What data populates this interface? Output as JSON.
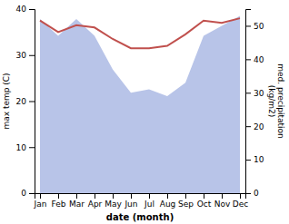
{
  "chart_data": {
    "type": "line",
    "categories": [
      "Jan",
      "Feb",
      "Mar",
      "Apr",
      "May",
      "Jun",
      "Jul",
      "Aug",
      "Sep",
      "Oct",
      "Nov",
      "Dec"
    ],
    "xlabel": "date (month)",
    "ylabel": "max temp (C)",
    "y2label": "med. precipitation\n(kg/m2)",
    "ylim": [
      0,
      40
    ],
    "yticks": [
      0,
      10,
      20,
      30,
      40
    ],
    "y2lim": [
      0,
      55
    ],
    "y2ticks": [
      0,
      10,
      20,
      30,
      40,
      50
    ],
    "series": [
      {
        "type": "area",
        "axis": "y2",
        "color": "#b8c4e8",
        "values": [
          52.0,
          47.0,
          52.0,
          47.0,
          37.0,
          30.0,
          31.0,
          29.0,
          33.0,
          47.0,
          50.0,
          53.0
        ]
      },
      {
        "type": "line",
        "color": "#c0504d",
        "values": [
          37.5,
          35.0,
          36.5,
          36.0,
          33.5,
          31.5,
          31.5,
          32.0,
          34.5,
          37.5,
          37.0,
          38.0
        ]
      }
    ]
  }
}
